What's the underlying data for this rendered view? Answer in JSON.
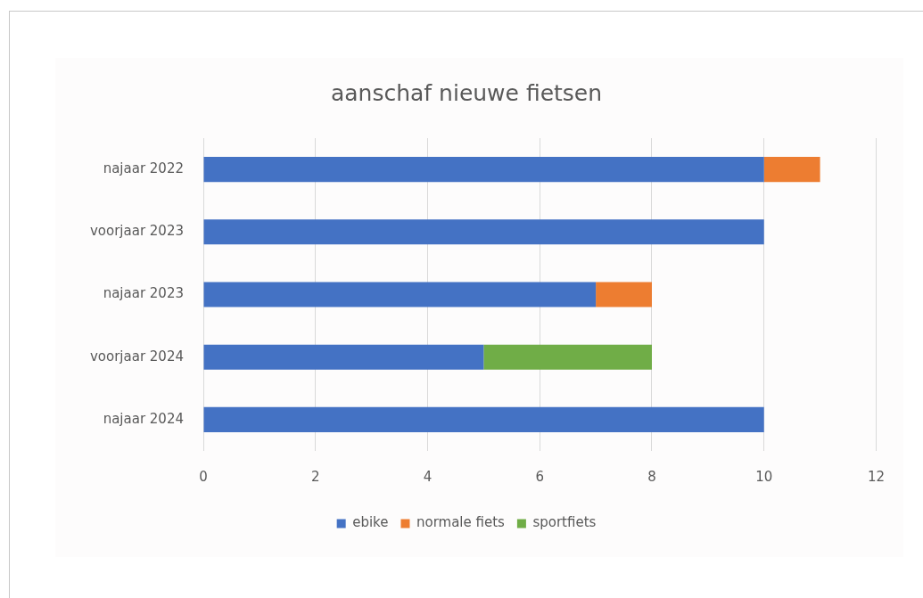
{
  "chart_data": {
    "type": "bar",
    "title": "aanschaf nieuwe fietsen",
    "orientation": "horizontal",
    "stacked": true,
    "categories": [
      "najaar 2022",
      "voorjaar 2023",
      "najaar 2023",
      "voorjaar 2024",
      "najaar 2024"
    ],
    "series": [
      {
        "name": "ebike",
        "color": "#4472c4",
        "values": [
          10,
          10,
          7,
          5,
          10
        ]
      },
      {
        "name": "normale fiets",
        "color": "#ed7d31",
        "values": [
          1,
          null,
          1,
          null,
          null
        ]
      },
      {
        "name": "sportfiets",
        "color": "#70ad47",
        "values": [
          null,
          null,
          null,
          3,
          null
        ]
      }
    ],
    "xlim": [
      0,
      12
    ],
    "xticks": [
      0,
      2,
      4,
      6,
      8,
      10,
      12
    ],
    "grid": "x",
    "legend": "bottom"
  }
}
